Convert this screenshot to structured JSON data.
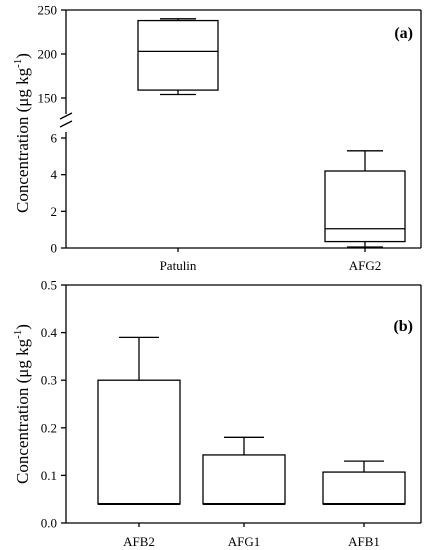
{
  "chart_data": [
    {
      "type": "box",
      "panel_label": "(a)",
      "ylabel_main": "Concentration (μg kg",
      "ylabel_sup": "-1",
      "ylabel_close": ")",
      "axis_break": true,
      "segments": {
        "upper": {
          "ylim": [
            140,
            250
          ],
          "ticks": [
            150,
            200,
            250
          ]
        },
        "lower": {
          "ylim": [
            0,
            6
          ],
          "ticks": [
            0,
            2,
            4,
            6
          ]
        }
      },
      "categories": [
        "Patulin",
        "AFG2"
      ],
      "boxes": [
        {
          "name": "Patulin",
          "min": 154,
          "q1": 159,
          "median": 203,
          "q3": 238,
          "max": 240
        },
        {
          "name": "AFG2",
          "min": 0.05,
          "q1": 0.35,
          "median": 1.05,
          "q3": 4.2,
          "max": 5.3
        }
      ]
    },
    {
      "type": "box",
      "panel_label": "(b)",
      "ylabel_main": "Concentration (μg kg",
      "ylabel_sup": "-1",
      "ylabel_close": ")",
      "ylim": [
        0,
        0.5
      ],
      "ticks": [
        0.0,
        0.1,
        0.2,
        0.3,
        0.4,
        0.5
      ],
      "tick_labels": [
        "0.0",
        "0.1",
        "0.2",
        "0.3",
        "0.4",
        "0.5"
      ],
      "categories": [
        "AFB2",
        "AFG1",
        "AFB1"
      ],
      "boxes": [
        {
          "name": "AFB2",
          "min": 0.04,
          "q1": 0.04,
          "median": 0.04,
          "q3": 0.3,
          "max": 0.39
        },
        {
          "name": "AFG1",
          "min": 0.04,
          "q1": 0.04,
          "median": 0.04,
          "q3": 0.143,
          "max": 0.18
        },
        {
          "name": "AFB1",
          "min": 0.04,
          "q1": 0.04,
          "median": 0.04,
          "q3": 0.107,
          "max": 0.13
        }
      ]
    }
  ]
}
